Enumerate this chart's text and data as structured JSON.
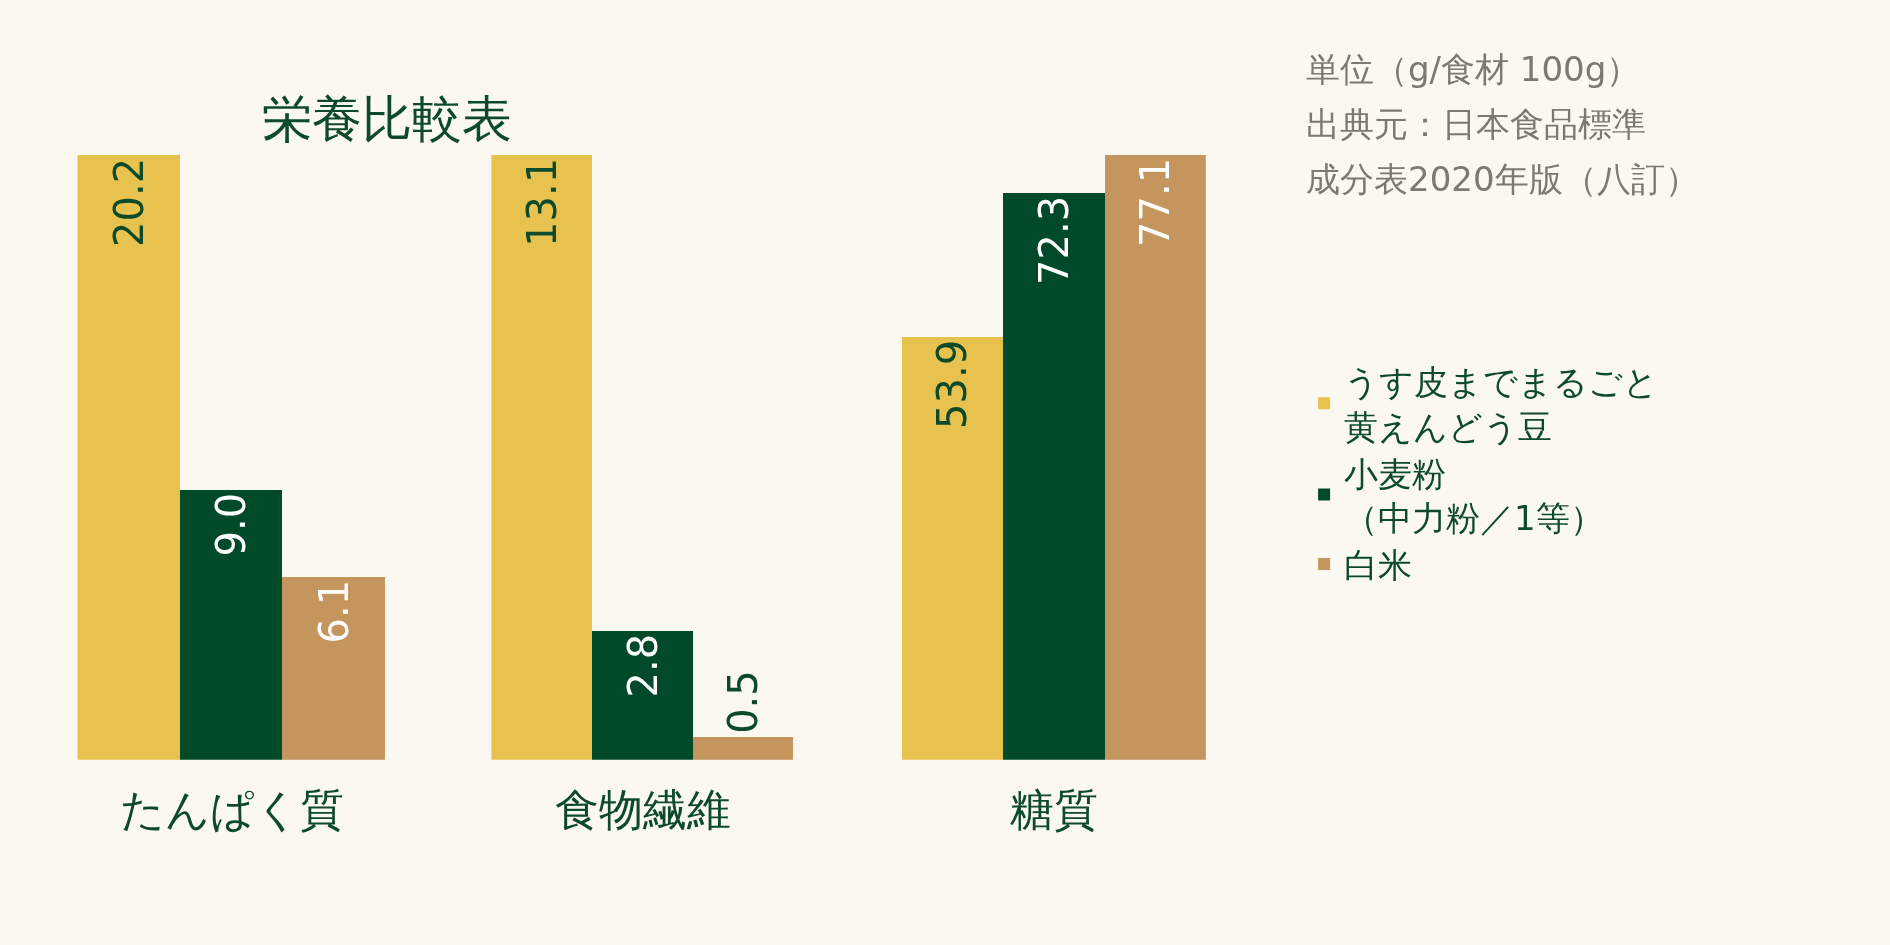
{
  "chart_data": [
    {
      "type": "bar",
      "title": "栄養比較表",
      "annotations": [
        "単位（g/食材 100g）",
        "出典元：日本食品標準",
        "成分表2020年版（八訂）"
      ],
      "categories": [
        "たんぱく質"
      ],
      "tick_labels": "x",
      "grid": false,
      "legend": "right",
      "series": [
        {
          "name": "うす皮までまるごと黄えんどう豆",
          "color": "#e8c24f",
          "values": [
            20.2
          ],
          "value_labels": [
            "20.2"
          ]
        },
        {
          "name": "小麦粉（中力粉／1等）",
          "color": "#004a2a",
          "values": [
            9.0
          ],
          "value_labels": [
            "9.0"
          ]
        },
        {
          "name": "白米",
          "color": "#c4955c",
          "values": [
            6.1
          ],
          "value_labels": [
            "6.1"
          ]
        }
      ]
    },
    {
      "type": "bar",
      "categories": [
        "食物繊維"
      ],
      "tick_labels": "x",
      "grid": false,
      "series": [
        {
          "color": "#e8c24f",
          "values": [
            13.1
          ],
          "value_labels": [
            "13.1"
          ]
        },
        {
          "color": "#004a2a",
          "values": [
            2.8
          ],
          "value_labels": [
            "2.8"
          ]
        },
        {
          "color": "#c4955c",
          "values": [
            0.5
          ],
          "value_labels": [
            "0.5"
          ]
        }
      ]
    },
    {
      "type": "bar",
      "categories": [
        "糖質"
      ],
      "tick_labels": "x",
      "grid": false,
      "series": [
        {
          "color": "#e8c24f",
          "values": [
            53.9
          ],
          "value_labels": [
            "53.9"
          ]
        },
        {
          "color": "#004a2a",
          "values": [
            72.3
          ],
          "value_labels": [
            "72.3"
          ]
        },
        {
          "color": "#c4955c",
          "values": [
            77.1
          ],
          "value_labels": [
            "77.1"
          ]
        }
      ]
    }
  ]
}
